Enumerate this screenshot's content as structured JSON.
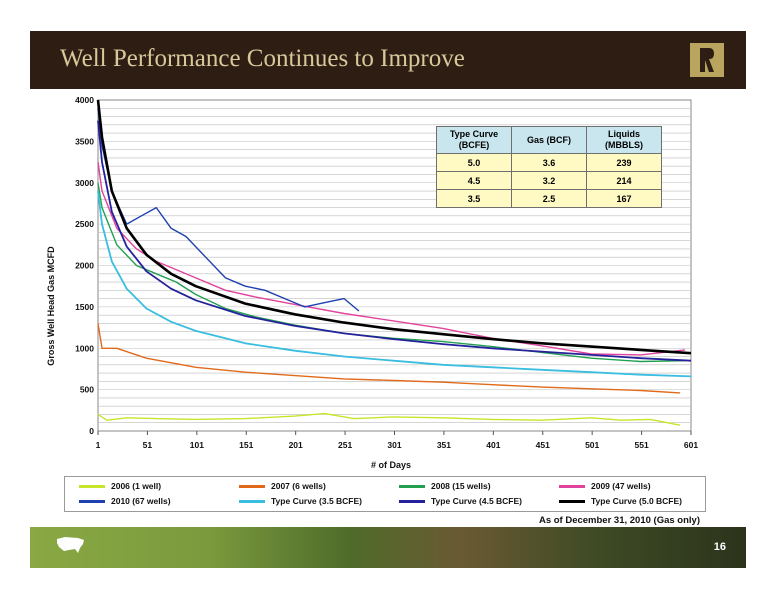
{
  "slide": {
    "title": "Well Performance Continues to Improve",
    "footnote": "As of December 31, 2010 (Gas only)",
    "page_number": "16",
    "logo_icon": "company-logo",
    "map_icon": "us-map-icon"
  },
  "table": {
    "headers": [
      "Type Curve (BCFE)",
      "Gas (BCF)",
      "Liquids (MBBLS)"
    ],
    "rows": [
      [
        "5.0",
        "3.6",
        "239"
      ],
      [
        "4.5",
        "3.2",
        "214"
      ],
      [
        "3.5",
        "2.5",
        "167"
      ]
    ]
  },
  "chart_data": {
    "type": "line",
    "title": "",
    "xlabel": "# of Days",
    "ylabel": "Gross Well Head Gas MCFD",
    "xlim": [
      1,
      601
    ],
    "ylim": [
      0,
      4000
    ],
    "x_ticks": [
      "1",
      "51",
      "101",
      "151",
      "201",
      "251",
      "301",
      "351",
      "401",
      "451",
      "501",
      "551",
      "601"
    ],
    "y_ticks": [
      "0",
      "500",
      "1000",
      "1500",
      "2000",
      "2500",
      "3000",
      "3500",
      "4000"
    ],
    "grid": "horizontal",
    "legend_position": "bottom",
    "series": [
      {
        "name": "2006 (1 well)",
        "color": "#c6e62a",
        "x": [
          1,
          10,
          30,
          60,
          100,
          150,
          200,
          230,
          260,
          300,
          350,
          400,
          450,
          500,
          530,
          560,
          590
        ],
        "y": [
          200,
          130,
          160,
          150,
          140,
          150,
          180,
          210,
          150,
          170,
          160,
          140,
          130,
          160,
          130,
          140,
          70
        ]
      },
      {
        "name": "2007 (6 wells)",
        "color": "#e06a1a",
        "x": [
          1,
          5,
          20,
          50,
          100,
          150,
          200,
          250,
          300,
          350,
          400,
          450,
          500,
          550,
          590
        ],
        "y": [
          1300,
          1000,
          1000,
          880,
          770,
          710,
          670,
          630,
          610,
          590,
          560,
          530,
          510,
          490,
          460
        ]
      },
      {
        "name": "2008 (15 wells)",
        "color": "#22a050",
        "x": [
          1,
          5,
          20,
          40,
          60,
          80,
          100,
          130,
          160,
          200,
          250,
          300,
          350,
          400,
          450,
          500,
          550,
          595
        ],
        "y": [
          3000,
          2700,
          2250,
          2000,
          1900,
          1800,
          1650,
          1480,
          1380,
          1280,
          1180,
          1120,
          1080,
          1020,
          950,
          880,
          840,
          850
        ]
      },
      {
        "name": "2009 (47 wells)",
        "color": "#e0449c",
        "x": [
          1,
          5,
          20,
          40,
          60,
          80,
          100,
          130,
          160,
          200,
          250,
          300,
          350,
          400,
          450,
          500,
          550,
          595
        ],
        "y": [
          3250,
          2900,
          2450,
          2200,
          2050,
          1950,
          1850,
          1700,
          1620,
          1530,
          1420,
          1330,
          1240,
          1120,
          1030,
          930,
          920,
          980
        ]
      },
      {
        "name": "2010 (67 wells)",
        "color": "#1e40b0",
        "x": [
          1,
          5,
          15,
          30,
          45,
          60,
          75,
          90,
          110,
          130,
          150,
          170,
          190,
          210,
          230,
          250,
          265
        ],
        "y": [
          3900,
          3450,
          2900,
          2500,
          2600,
          2700,
          2450,
          2350,
          2100,
          1850,
          1750,
          1700,
          1600,
          1500,
          1550,
          1600,
          1450
        ]
      },
      {
        "name": "Type Curve (3.5 BCFE)",
        "color": "#39bde0",
        "x": [
          1,
          5,
          15,
          30,
          50,
          75,
          100,
          150,
          200,
          250,
          300,
          350,
          400,
          450,
          500,
          550,
          601
        ],
        "y": [
          2900,
          2500,
          2050,
          1720,
          1480,
          1320,
          1210,
          1060,
          970,
          900,
          850,
          800,
          770,
          740,
          710,
          680,
          660
        ]
      },
      {
        "name": "Type Curve (4.5 BCFE)",
        "color": "#25219b",
        "x": [
          1,
          5,
          15,
          30,
          50,
          75,
          100,
          150,
          200,
          250,
          300,
          350,
          400,
          450,
          500,
          550,
          601
        ],
        "y": [
          3750,
          3250,
          2650,
          2230,
          1930,
          1720,
          1580,
          1390,
          1270,
          1180,
          1110,
          1050,
          1000,
          960,
          920,
          880,
          850
        ]
      },
      {
        "name": "Type Curve (5.0 BCFE)",
        "color": "#000000",
        "x": [
          1,
          5,
          15,
          30,
          50,
          75,
          100,
          150,
          200,
          250,
          300,
          350,
          400,
          450,
          500,
          550,
          601
        ],
        "y": [
          4000,
          3550,
          2900,
          2450,
          2130,
          1900,
          1750,
          1540,
          1410,
          1310,
          1230,
          1170,
          1110,
          1060,
          1020,
          980,
          940
        ]
      }
    ]
  }
}
